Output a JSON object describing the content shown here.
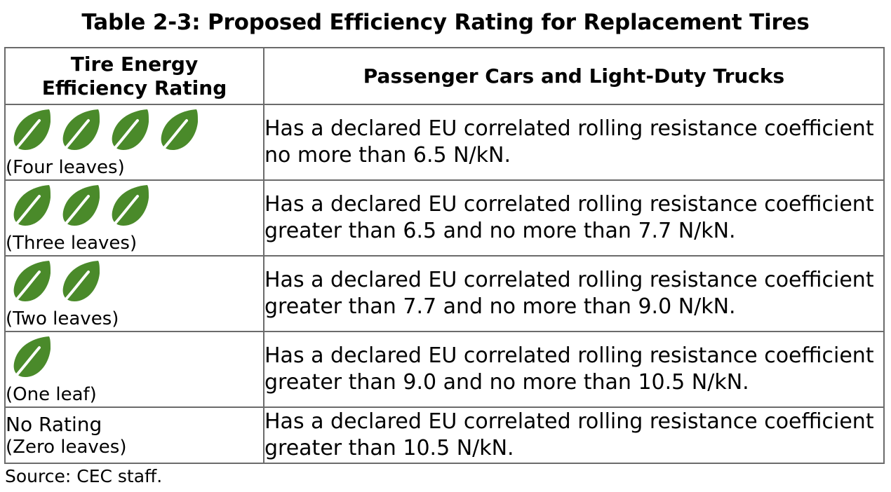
{
  "title": "Table 2-3: Proposed Efficiency Rating for Replacement Tires",
  "header": {
    "col1_line1": "Tire Energy",
    "col1_line2": "Efficiency Rating",
    "col2": "Passenger Cars and Light-Duty Trucks"
  },
  "rows": [
    {
      "leaf_count": 4,
      "leaf_icon": "leaf-icon",
      "leaf_color": "#4a8a2a",
      "label": "(Four leaves)",
      "desc_line1": "Has a declared EU correlated rolling resistance coefficient",
      "desc_line2": "no more than 6.5 N/kN."
    },
    {
      "leaf_count": 3,
      "leaf_icon": "leaf-icon",
      "leaf_color": "#4a8a2a",
      "label": "(Three leaves)",
      "desc_line1": "Has a declared EU correlated rolling resistance coefficient",
      "desc_line2": "greater than 6.5 and no more than 7.7 N/kN."
    },
    {
      "leaf_count": 2,
      "leaf_icon": "leaf-icon",
      "leaf_color": "#4a8a2a",
      "label": "(Two leaves)",
      "desc_line1": "Has a declared EU correlated rolling resistance coefficient",
      "desc_line2": "greater than 7.7 and no more than 9.0 N/kN."
    },
    {
      "leaf_count": 1,
      "leaf_icon": "leaf-icon",
      "leaf_color": "#4a8a2a",
      "label": "(One leaf)",
      "desc_line1": "Has a declared EU correlated rolling resistance coefficient",
      "desc_line2": "greater than 9.0 and no more than 10.5 N/kN."
    },
    {
      "leaf_count": 0,
      "title": "No Rating",
      "label": "(Zero leaves)",
      "desc_line1": "Has a declared EU correlated rolling resistance coefficient",
      "desc_line2": "greater than 10.5 N/kN."
    }
  ],
  "source": "Source: CEC staff.",
  "colors": {
    "leaf_fill": "#4a8a2a",
    "leaf_vein": "#ffffff",
    "border": "#6b6b6b"
  }
}
